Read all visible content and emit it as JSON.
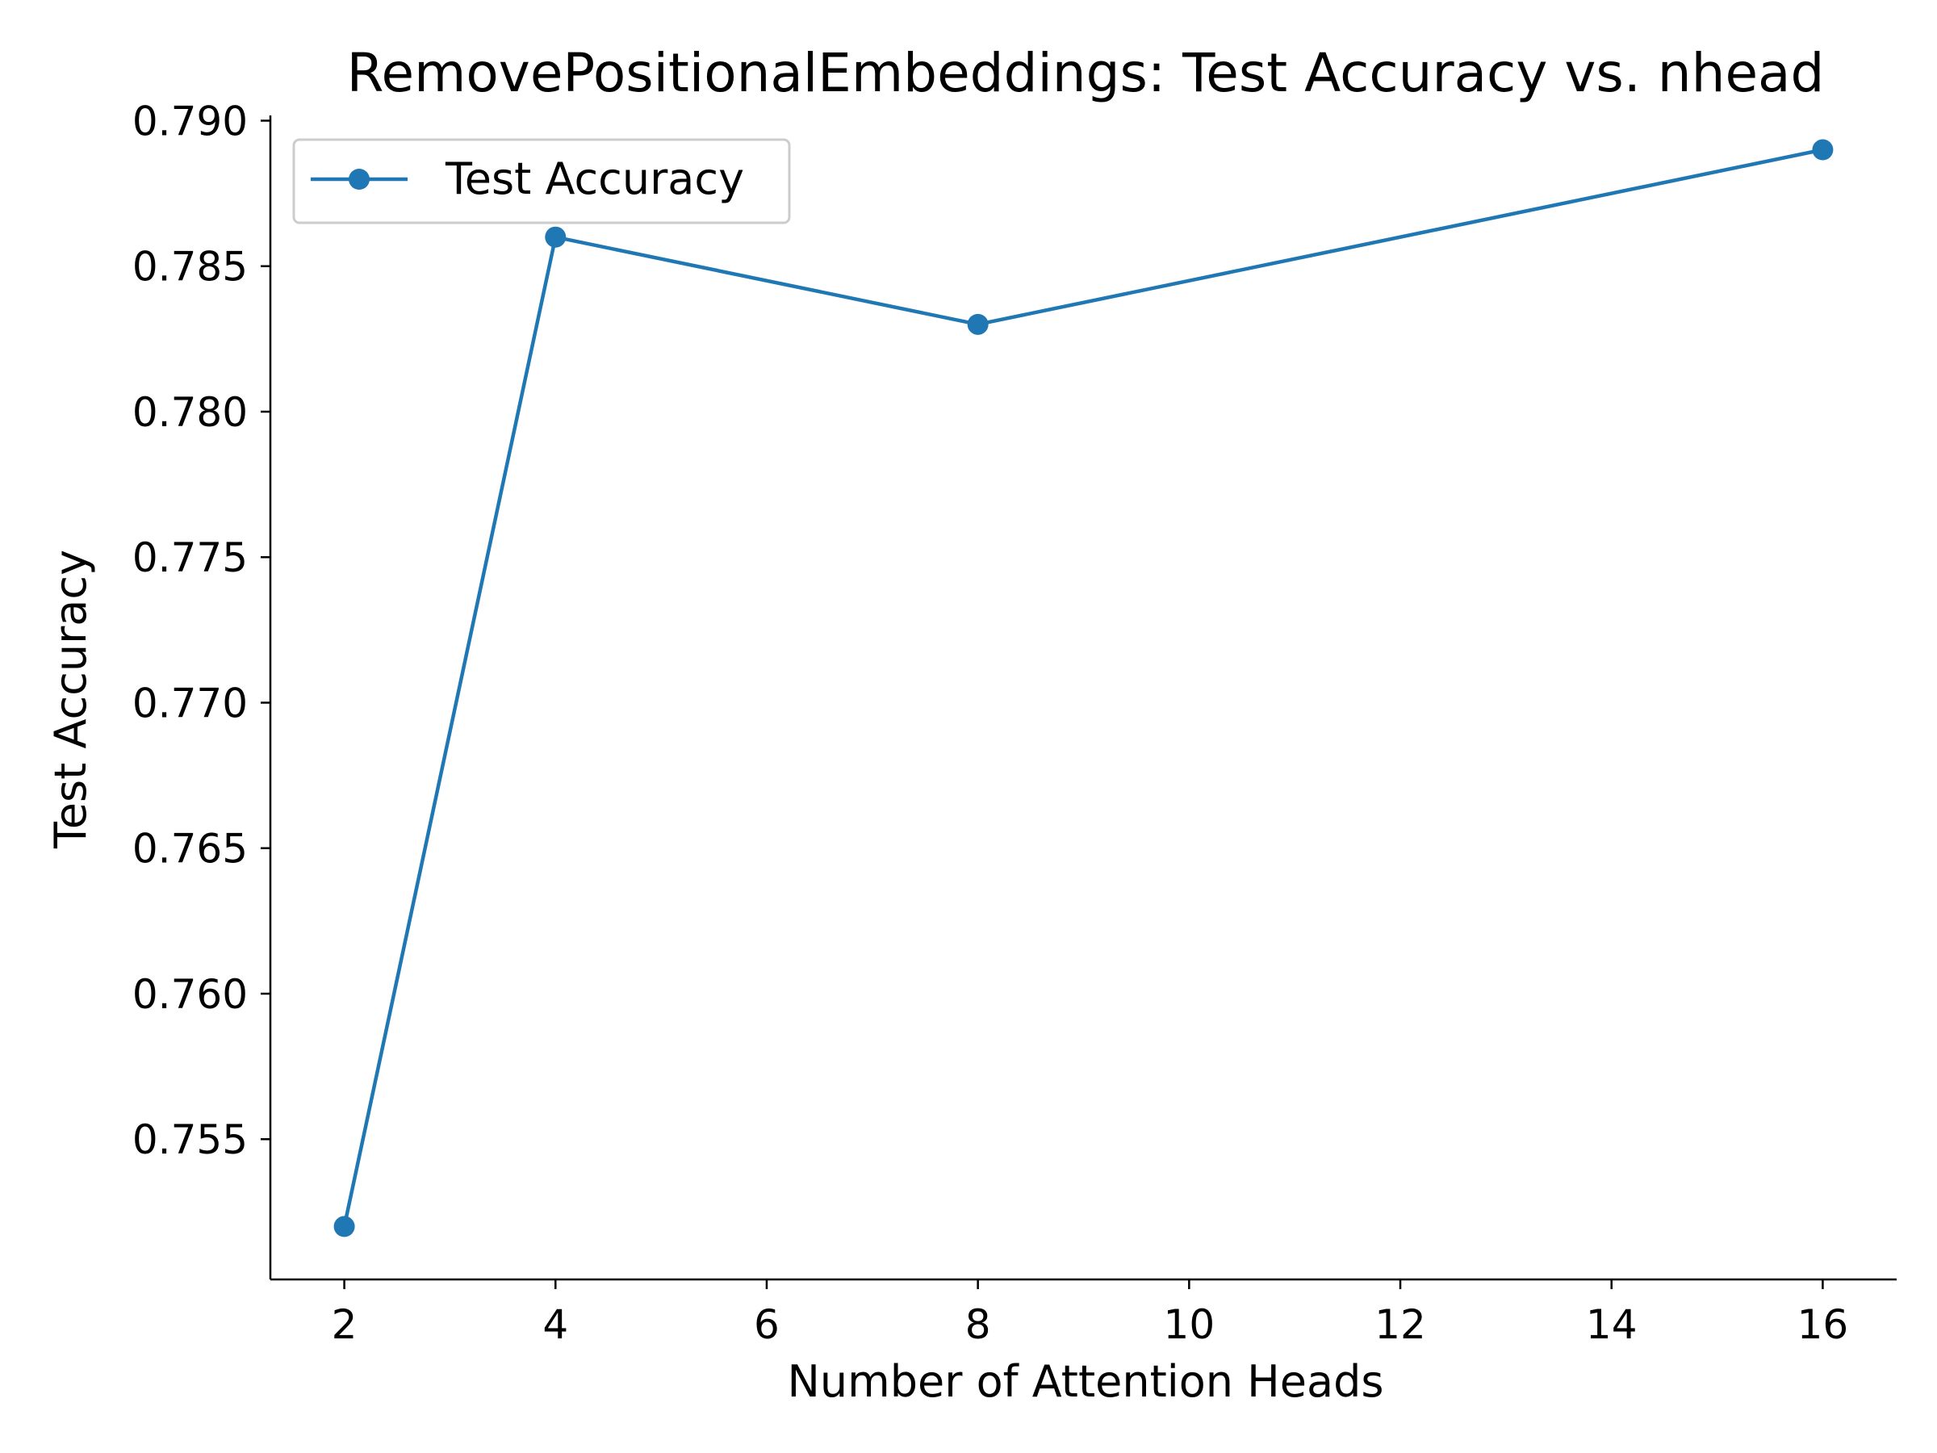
{
  "chart_data": {
    "type": "line",
    "title": "RemovePositionalEmbeddings: Test Accuracy vs. nhead",
    "xlabel": "Number of Attention Heads",
    "ylabel": "Test Accuracy",
    "x": [
      2,
      4,
      8,
      16
    ],
    "series": [
      {
        "name": "Test Accuracy",
        "values": [
          0.752,
          0.786,
          0.783,
          0.789
        ],
        "color": "#1f77b4",
        "marker": "circle"
      }
    ],
    "xlim": [
      1.3,
      16.7
    ],
    "ylim": [
      0.75018,
      0.79018
    ],
    "xticks": [
      2,
      4,
      6,
      8,
      10,
      12,
      14,
      16
    ],
    "xtick_labels": [
      "2",
      "4",
      "6",
      "8",
      "10",
      "12",
      "14",
      "16"
    ],
    "yticks": [
      0.755,
      0.76,
      0.765,
      0.77,
      0.775,
      0.78,
      0.785,
      0.79
    ],
    "ytick_labels": [
      "0.755",
      "0.760",
      "0.765",
      "0.770",
      "0.775",
      "0.780",
      "0.785",
      "0.790"
    ],
    "grid": false,
    "legend_position": "top-left",
    "spines": "left-bottom"
  }
}
